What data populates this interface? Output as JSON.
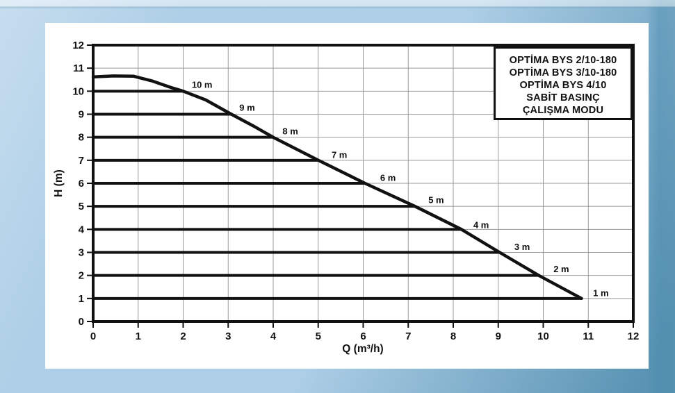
{
  "legend": {
    "lines": [
      "OPTİMA BYS 2/10-180",
      "OPTİMA BYS 3/10-180",
      "OPTİMA BYS 4/10",
      "SABİT BASINÇ",
      "ÇALIŞMA MODU"
    ]
  },
  "colors": {
    "page_background": "#aecfe7",
    "page_background_light": "#d2e4f2",
    "page_background_teal": "#5d9bbd",
    "panel": "#ffffff",
    "ink": "#111111",
    "grid": "#999999"
  },
  "chart_data": {
    "type": "line",
    "title": "",
    "xlabel": "Q (m³/h)",
    "ylabel": "H (m)",
    "xlim": [
      0,
      12
    ],
    "ylim": [
      0,
      12
    ],
    "x_ticks": [
      0,
      1,
      2,
      3,
      4,
      5,
      6,
      7,
      8,
      9,
      10,
      11,
      12
    ],
    "y_ticks": [
      0,
      1,
      2,
      3,
      4,
      5,
      6,
      7,
      8,
      9,
      10,
      11,
      12
    ],
    "grid": true,
    "series": [
      {
        "name": "max-head-curve",
        "points": [
          [
            0,
            10.62
          ],
          [
            0.45,
            10.66
          ],
          [
            0.9,
            10.65
          ],
          [
            1.3,
            10.45
          ],
          [
            1.7,
            10.18
          ],
          [
            2.0,
            10.0
          ],
          [
            2.5,
            9.62
          ],
          [
            3.07,
            9.0
          ],
          [
            3.55,
            8.5
          ],
          [
            4.0,
            8.0
          ],
          [
            5.0,
            7.0
          ],
          [
            6.04,
            6.0
          ],
          [
            7.15,
            5.0
          ],
          [
            8.18,
            4.0
          ],
          [
            9.03,
            3.0
          ],
          [
            9.9,
            2.0
          ],
          [
            10.85,
            1.0
          ]
        ]
      }
    ],
    "pressure_levels": [
      {
        "h": 10,
        "q_end": 2.0,
        "label": "10 m",
        "label_q": 2.42,
        "label_h": 10.27
      },
      {
        "h": 9,
        "q_end": 3.07,
        "label": "9 m",
        "label_q": 3.42,
        "label_h": 9.27
      },
      {
        "h": 8,
        "q_end": 4.0,
        "label": "8 m",
        "label_q": 4.38,
        "label_h": 8.24
      },
      {
        "h": 7,
        "q_end": 5.0,
        "label": "7 m",
        "label_q": 5.47,
        "label_h": 7.22
      },
      {
        "h": 6,
        "q_end": 6.04,
        "label": "6 m",
        "label_q": 6.55,
        "label_h": 6.22
      },
      {
        "h": 5,
        "q_end": 7.15,
        "label": "5 m",
        "label_q": 7.62,
        "label_h": 5.26
      },
      {
        "h": 4,
        "q_end": 8.18,
        "label": "4 m",
        "label_q": 8.62,
        "label_h": 4.18
      },
      {
        "h": 3,
        "q_end": 9.03,
        "label": "3 m",
        "label_q": 9.53,
        "label_h": 3.22
      },
      {
        "h": 2,
        "q_end": 9.9,
        "label": "2 m",
        "label_q": 10.4,
        "label_h": 2.26
      },
      {
        "h": 1,
        "q_end": 10.85,
        "label": "1 m",
        "label_q": 11.28,
        "label_h": 1.22
      }
    ]
  }
}
